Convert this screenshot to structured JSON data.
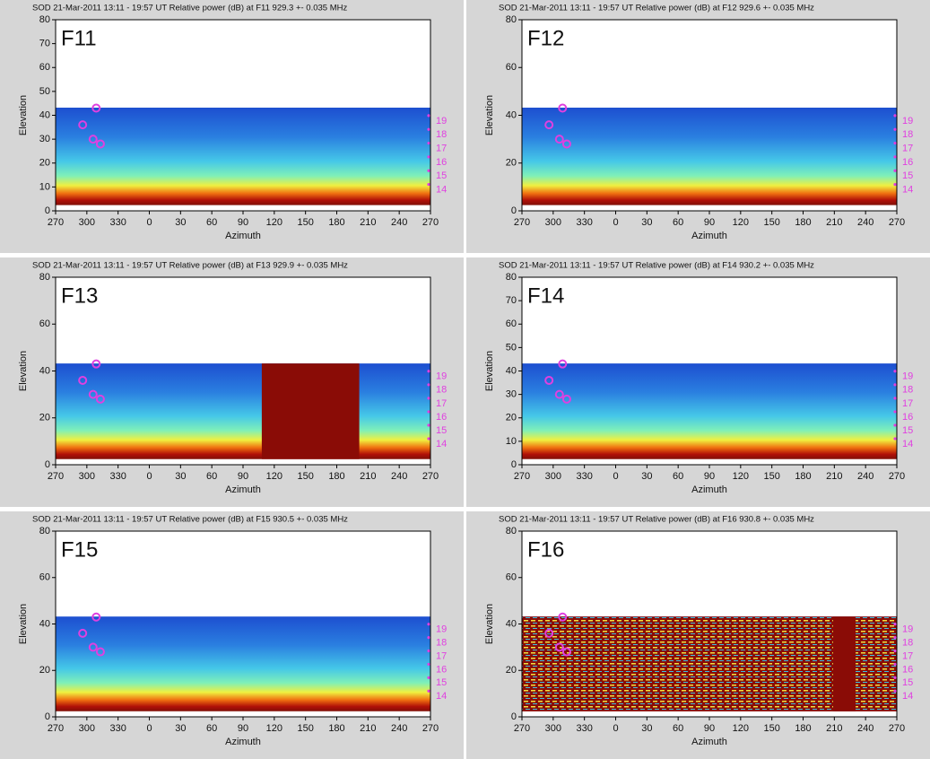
{
  "chart_data": [
    {
      "type": "heatmap",
      "title": "SOD 21-Mar-2011 13:11 - 19:57 UT Relative power (dB) at F11 929.3 +- 0.035 MHz",
      "label": "F11",
      "xlabel": "Azimuth",
      "ylabel": "Elevation",
      "xlim": [
        -90,
        270
      ],
      "xticks": [
        {
          "value": -90,
          "label": "270"
        },
        {
          "value": -60,
          "label": "300"
        },
        {
          "value": -30,
          "label": "330"
        },
        0,
        30,
        60,
        90,
        120,
        150,
        180,
        210,
        240,
        270
      ],
      "ylim": [
        0,
        80
      ],
      "yticks": [
        0,
        10,
        20,
        30,
        40,
        50,
        60,
        70,
        80
      ],
      "markers": {
        "color": "#e040e0",
        "x": [
          -64,
          -54,
          -47,
          -51
        ],
        "y": [
          36,
          30,
          28,
          43
        ]
      },
      "side_labels": [
        "19",
        "18",
        "17",
        "16",
        "15",
        "14"
      ]
    },
    {
      "type": "heatmap",
      "title": "SOD 21-Mar-2011 13:11 - 19:57 UT Relative power (dB) at F12 929.6 +- 0.035 MHz",
      "label": "F12",
      "xlabel": "Azimuth",
      "ylabel": "Elevation",
      "xlim": [
        -90,
        270
      ],
      "xticks": [
        {
          "value": -90,
          "label": "270"
        },
        {
          "value": -60,
          "label": "300"
        },
        {
          "value": -30,
          "label": "330"
        },
        0,
        30,
        60,
        90,
        120,
        150,
        180,
        210,
        240,
        270
      ],
      "ylim": [
        0,
        80
      ],
      "yticks": [
        0,
        20,
        40,
        60,
        80
      ],
      "markers": {
        "color": "#e040e0",
        "x": [
          -64,
          -54,
          -47,
          -51
        ],
        "y": [
          36,
          30,
          28,
          43
        ]
      },
      "side_labels": [
        "19",
        "18",
        "17",
        "16",
        "15",
        "14"
      ]
    },
    {
      "type": "heatmap",
      "title": "SOD 21-Mar-2011 13:11 - 19:57 UT Relative power (dB) at F13 929.9 +- 0.035 MHz",
      "label": "F13",
      "xlabel": "Azimuth",
      "ylabel": "Elevation",
      "xlim": [
        -90,
        270
      ],
      "xticks": [
        {
          "value": -90,
          "label": "270"
        },
        {
          "value": -60,
          "label": "300"
        },
        {
          "value": -30,
          "label": "330"
        },
        0,
        30,
        60,
        90,
        120,
        150,
        180,
        210,
        240,
        270
      ],
      "ylim": [
        0,
        80
      ],
      "yticks": [
        0,
        20,
        40,
        60,
        80
      ],
      "markers": {
        "color": "#e040e0",
        "x": [
          -64,
          -54,
          -47,
          -51
        ],
        "y": [
          36,
          30,
          28,
          43
        ]
      },
      "side_labels": [
        "19",
        "18",
        "17",
        "16",
        "15",
        "14"
      ]
    },
    {
      "type": "heatmap",
      "title": "SOD 21-Mar-2011 13:11 - 19:57 UT Relative power (dB) at F14 930.2 +- 0.035 MHz",
      "label": "F14",
      "xlabel": "Azimuth",
      "ylabel": "Elevation",
      "xlim": [
        -90,
        270
      ],
      "xticks": [
        {
          "value": -90,
          "label": "270"
        },
        {
          "value": -60,
          "label": "300"
        },
        {
          "value": -30,
          "label": "330"
        },
        0,
        30,
        60,
        90,
        120,
        150,
        180,
        210,
        240,
        270
      ],
      "ylim": [
        0,
        80
      ],
      "yticks": [
        0,
        10,
        20,
        30,
        40,
        50,
        60,
        70,
        80
      ],
      "markers": {
        "color": "#e040e0",
        "x": [
          -64,
          -54,
          -47,
          -51
        ],
        "y": [
          36,
          30,
          28,
          43
        ]
      },
      "side_labels": [
        "19",
        "18",
        "17",
        "16",
        "15",
        "14"
      ]
    },
    {
      "type": "heatmap",
      "title": "SOD 21-Mar-2011 13:11 - 19:57 UT Relative power (dB) at F15 930.5 +- 0.035 MHz",
      "label": "F15",
      "xlabel": "Azimuth",
      "ylabel": "Elevation",
      "xlim": [
        -90,
        270
      ],
      "xticks": [
        {
          "value": -90,
          "label": "270"
        },
        {
          "value": -60,
          "label": "300"
        },
        {
          "value": -30,
          "label": "330"
        },
        0,
        30,
        60,
        90,
        120,
        150,
        180,
        210,
        240,
        270
      ],
      "ylim": [
        0,
        80
      ],
      "yticks": [
        0,
        20,
        40,
        60,
        80
      ],
      "markers": {
        "color": "#e040e0",
        "x": [
          -64,
          -54,
          -47,
          -51
        ],
        "y": [
          36,
          30,
          28,
          43
        ]
      },
      "side_labels": [
        "19",
        "18",
        "17",
        "16",
        "15",
        "14"
      ]
    },
    {
      "type": "heatmap",
      "title": "SOD 21-Mar-2011 13:11 - 19:57 UT Relative power (dB) at F16 930.8 +- 0.035 MHz",
      "label": "F16",
      "xlabel": "Azimuth",
      "ylabel": "Elevation",
      "xlim": [
        -90,
        270
      ],
      "xticks": [
        {
          "value": -90,
          "label": "270"
        },
        {
          "value": -60,
          "label": "300"
        },
        {
          "value": -30,
          "label": "330"
        },
        0,
        30,
        60,
        90,
        120,
        150,
        180,
        210,
        240,
        270
      ],
      "ylim": [
        0,
        80
      ],
      "yticks": [
        0,
        20,
        40,
        60,
        80
      ],
      "markers": {
        "color": "#e040e0",
        "x": [
          -64,
          -54,
          -47,
          -51
        ],
        "y": [
          36,
          30,
          28,
          43
        ]
      },
      "side_labels": [
        "19",
        "18",
        "17",
        "16",
        "15",
        "14"
      ]
    }
  ]
}
